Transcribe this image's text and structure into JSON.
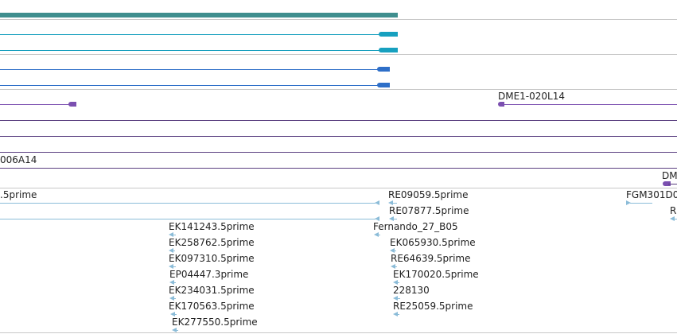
{
  "colors": {
    "gene": "#3f8e8e",
    "cds_teal": "#17a0bf",
    "cds_blue": "#2e6fc8",
    "clone": "#7b4fb0",
    "clone_line": "#5a3f80",
    "est": "#8bbcd8",
    "separator": "#c8c8c8"
  },
  "clone_labels": {
    "dme1_020l14": "DME1-020L14",
    "left_clone": "006A14",
    "right_clone": "DM"
  },
  "est_labels": {
    "l_5prime": ".5prime",
    "re09059": "RE09059.5prime",
    "re07877": "RE07877.5prime",
    "fgm301d0": "FGM301D0",
    "r_cut": "R",
    "ek141243": "EK141243.5prime",
    "fernando": "Fernando_27_B05",
    "ek258762": "EK258762.5prime",
    "ek065930": "EK065930.5prime",
    "ek097310": "EK097310.5prime",
    "re64639": "RE64639.5prime",
    "ep04447": "EP04447.3prime",
    "ek170020": "EK170020.5prime",
    "ek234031": "EK234031.5prime",
    "n228130": "228130",
    "ek170563": "EK170563.5prime",
    "re25059": "RE25059.5prime",
    "ek277550": "EK277550.5prime"
  }
}
